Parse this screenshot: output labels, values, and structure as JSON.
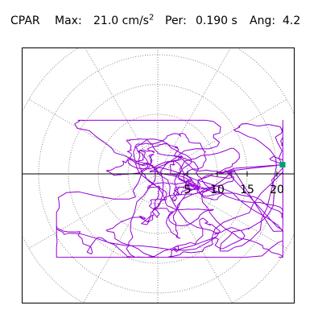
{
  "header": {
    "station": "CPAR",
    "max_label": "Max:",
    "max_value": "21.0 cm/s",
    "max_exponent": "2",
    "per_label": "Per:",
    "per_value": "0.190 s",
    "ang_label": "Ang:",
    "ang_value": "4.2"
  },
  "colors": {
    "trace": "#9400d3",
    "max_marker": "#00a070",
    "grid": "#888888",
    "axis": "#000000",
    "frame": "#000000"
  },
  "chart_data": {
    "type": "scatter",
    "title": "",
    "polar": true,
    "radial_unit": "cm/s2",
    "radial_range": [
      0,
      25
    ],
    "radial_ticks": [
      5,
      10,
      15,
      20
    ],
    "radial_tick_labels": [
      "5",
      "10",
      "15",
      "20"
    ],
    "ring_radii": [
      5,
      10,
      15,
      20,
      25
    ],
    "angular_grid_step_deg": 30,
    "max_point": {
      "radius": 21.0,
      "angle_deg": 4.2
    },
    "trace_extent": {
      "x_min": -17,
      "x_max": 21,
      "y_min": -14,
      "y_max": 9
    },
    "grid": true
  }
}
